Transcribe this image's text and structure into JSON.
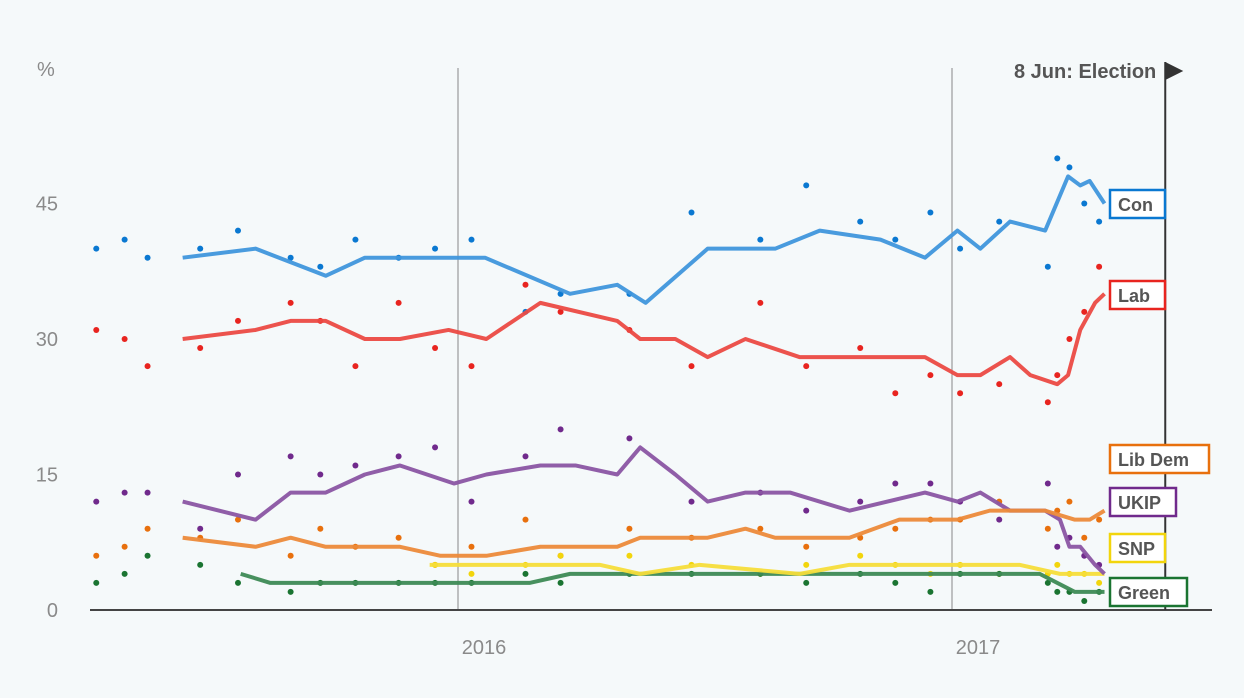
{
  "chart_data": {
    "type": "scatter",
    "ylabel": "%",
    "ylim": [
      0,
      60
    ],
    "yticks": [
      "0",
      "15",
      "30",
      "45"
    ],
    "xlim": [
      "2015-04-01",
      "2017-07-12"
    ],
    "xticks": [
      {
        "date": "2016-01-01",
        "label": "2016"
      },
      {
        "date": "2017-01-01",
        "label": "2017"
      }
    ],
    "grid": "vertical at year starts",
    "annotation": {
      "date": "2017-06-08",
      "label": "8 Jun: Election"
    },
    "dot_dates": [
      "2015-04-08",
      "2015-04-29",
      "2015-05-16",
      "2015-06-24",
      "2015-07-22",
      "2015-08-30",
      "2015-09-21",
      "2015-10-17",
      "2015-11-18",
      "2015-12-15",
      "2016-01-11",
      "2016-02-20",
      "2016-03-17",
      "2016-05-07",
      "2016-06-22",
      "2016-08-12",
      "2016-09-15",
      "2016-10-25",
      "2016-11-20",
      "2016-12-16",
      "2017-01-07",
      "2017-02-05",
      "2017-03-13",
      "2017-03-20",
      "2017-03-29",
      "2017-04-09",
      "2017-04-20"
    ],
    "series": [
      {
        "name": "Con",
        "color": "#0a78d1",
        "line_color": "#3f96dc",
        "dots": [
          40,
          41,
          39,
          40,
          42,
          39,
          38,
          41,
          39,
          40,
          41,
          33,
          35,
          35,
          44,
          41,
          47,
          43,
          41,
          44,
          40,
          43,
          38,
          50,
          49,
          45,
          43
        ],
        "trend": [
          [
            "2015-06-11",
            39
          ],
          [
            "2015-08-04",
            40
          ],
          [
            "2015-09-25",
            37
          ],
          [
            "2015-10-24",
            39
          ],
          [
            "2015-12-19",
            39
          ],
          [
            "2016-01-21",
            39
          ],
          [
            "2016-03-24",
            35
          ],
          [
            "2016-04-28",
            36
          ],
          [
            "2016-05-19",
            34
          ],
          [
            "2016-07-04",
            40
          ],
          [
            "2016-08-23",
            40
          ],
          [
            "2016-09-25",
            42
          ],
          [
            "2016-11-09",
            41
          ],
          [
            "2016-12-12",
            39
          ],
          [
            "2017-01-05",
            42
          ],
          [
            "2017-01-22",
            40
          ],
          [
            "2017-02-13",
            43
          ],
          [
            "2017-03-11",
            42
          ],
          [
            "2017-03-28",
            48
          ],
          [
            "2017-04-06",
            47
          ],
          [
            "2017-04-13",
            47.5
          ],
          [
            "2017-04-24",
            45
          ]
        ]
      },
      {
        "name": "Lab",
        "color": "#e8241f",
        "line_color": "#eb4a43",
        "dots": [
          31,
          30,
          27,
          29,
          32,
          34,
          32,
          27,
          34,
          29,
          27,
          36,
          33,
          31,
          27,
          34,
          27,
          29,
          24,
          26,
          24,
          25,
          23,
          26,
          30,
          33,
          38
        ],
        "trend": [
          [
            "2015-06-11",
            30
          ],
          [
            "2015-08-04",
            31
          ],
          [
            "2015-08-30",
            32
          ],
          [
            "2015-09-25",
            32
          ],
          [
            "2015-10-24",
            30
          ],
          [
            "2015-11-19",
            30
          ],
          [
            "2015-12-25",
            31
          ],
          [
            "2016-01-22",
            30
          ],
          [
            "2016-03-02",
            34
          ],
          [
            "2016-04-28",
            32
          ],
          [
            "2016-05-15",
            30
          ],
          [
            "2016-06-10",
            30
          ],
          [
            "2016-07-04",
            28
          ],
          [
            "2016-08-01",
            30
          ],
          [
            "2016-09-10",
            28
          ],
          [
            "2016-10-17",
            28
          ],
          [
            "2016-12-12",
            28
          ],
          [
            "2017-01-05",
            26
          ],
          [
            "2017-01-22",
            26
          ],
          [
            "2017-02-13",
            28
          ],
          [
            "2017-02-28",
            26
          ],
          [
            "2017-03-20",
            25
          ],
          [
            "2017-03-28",
            26
          ],
          [
            "2017-04-06",
            31
          ],
          [
            "2017-04-17",
            34
          ],
          [
            "2017-04-24",
            35
          ]
        ]
      },
      {
        "name": "Lib Dem",
        "color": "#e8700d",
        "line_color": "#ec8a3a",
        "dots": [
          6,
          7,
          9,
          8,
          10,
          6,
          9,
          7,
          8,
          5,
          7,
          10,
          6,
          9,
          8,
          9,
          7,
          8,
          9,
          10,
          10,
          12,
          9,
          11,
          12,
          8,
          10
        ],
        "trend": [
          [
            "2015-06-11",
            8
          ],
          [
            "2015-08-04",
            7
          ],
          [
            "2015-08-30",
            8
          ],
          [
            "2015-09-25",
            7
          ],
          [
            "2015-11-19",
            7
          ],
          [
            "2015-12-19",
            6
          ],
          [
            "2016-01-22",
            6
          ],
          [
            "2016-03-02",
            7
          ],
          [
            "2016-04-28",
            7
          ],
          [
            "2016-05-15",
            8
          ],
          [
            "2016-07-04",
            8
          ],
          [
            "2016-08-01",
            9
          ],
          [
            "2016-08-23",
            8
          ],
          [
            "2016-10-17",
            8
          ],
          [
            "2016-11-23",
            10
          ],
          [
            "2017-01-05",
            10
          ],
          [
            "2017-01-29",
            11
          ],
          [
            "2017-03-11",
            11
          ],
          [
            "2017-04-02",
            10
          ],
          [
            "2017-04-13",
            10
          ],
          [
            "2017-04-24",
            11
          ]
        ]
      },
      {
        "name": "UKIP",
        "color": "#702a8c",
        "line_color": "#8a55a3",
        "dots": [
          12,
          13,
          13,
          9,
          15,
          17,
          15,
          16,
          17,
          18,
          12,
          17,
          20,
          19,
          12,
          13,
          11,
          12,
          14,
          14,
          12,
          10,
          14,
          7,
          8,
          6,
          5
        ],
        "trend": [
          [
            "2015-06-11",
            12
          ],
          [
            "2015-08-04",
            10
          ],
          [
            "2015-08-30",
            13
          ],
          [
            "2015-09-25",
            13
          ],
          [
            "2015-10-24",
            15
          ],
          [
            "2015-11-19",
            16
          ],
          [
            "2015-12-29",
            14
          ],
          [
            "2016-01-22",
            15
          ],
          [
            "2016-03-02",
            16
          ],
          [
            "2016-03-28",
            16
          ],
          [
            "2016-04-28",
            15
          ],
          [
            "2016-05-15",
            18
          ],
          [
            "2016-06-10",
            15
          ],
          [
            "2016-07-04",
            12
          ],
          [
            "2016-08-01",
            13
          ],
          [
            "2016-09-03",
            13
          ],
          [
            "2016-10-17",
            11
          ],
          [
            "2016-12-12",
            13
          ],
          [
            "2017-01-05",
            12
          ],
          [
            "2017-01-22",
            13
          ],
          [
            "2017-02-13",
            11
          ],
          [
            "2017-03-11",
            11
          ],
          [
            "2017-03-22",
            10
          ],
          [
            "2017-03-29",
            7
          ],
          [
            "2017-04-06",
            7
          ],
          [
            "2017-04-17",
            5
          ],
          [
            "2017-04-24",
            4
          ]
        ]
      },
      {
        "name": "SNP",
        "color": "#f2d50c",
        "line_color": "#f5dd3a",
        "dots": [
          null,
          null,
          null,
          null,
          null,
          null,
          null,
          null,
          null,
          5,
          4,
          5,
          6,
          6,
          5,
          4,
          5,
          6,
          5,
          4,
          5,
          4,
          4,
          5,
          4,
          4,
          3
        ],
        "trend": [
          [
            "2015-12-11",
            5
          ],
          [
            "2016-01-22",
            5
          ],
          [
            "2016-04-15",
            5
          ],
          [
            "2016-05-15",
            4
          ],
          [
            "2016-06-28",
            5
          ],
          [
            "2016-09-10",
            4
          ],
          [
            "2016-10-17",
            5
          ],
          [
            "2017-02-20",
            5
          ],
          [
            "2017-03-22",
            4
          ],
          [
            "2017-04-24",
            4
          ]
        ]
      },
      {
        "name": "Green",
        "color": "#1a7431",
        "line_color": "#3d8a55",
        "dots": [
          3,
          4,
          6,
          5,
          3,
          2,
          3,
          3,
          3,
          3,
          3,
          4,
          3,
          4,
          4,
          4,
          3,
          4,
          3,
          2,
          4,
          4,
          3,
          2,
          2,
          1,
          2
        ],
        "trend": [
          [
            "2015-07-24",
            4
          ],
          [
            "2015-08-15",
            3
          ],
          [
            "2015-12-19",
            3
          ],
          [
            "2016-02-23",
            3
          ],
          [
            "2016-03-24",
            4
          ],
          [
            "2016-06-28",
            4
          ],
          [
            "2016-09-10",
            4
          ],
          [
            "2017-03-07",
            4
          ],
          [
            "2017-04-02",
            2
          ],
          [
            "2017-04-24",
            2
          ]
        ]
      }
    ]
  }
}
